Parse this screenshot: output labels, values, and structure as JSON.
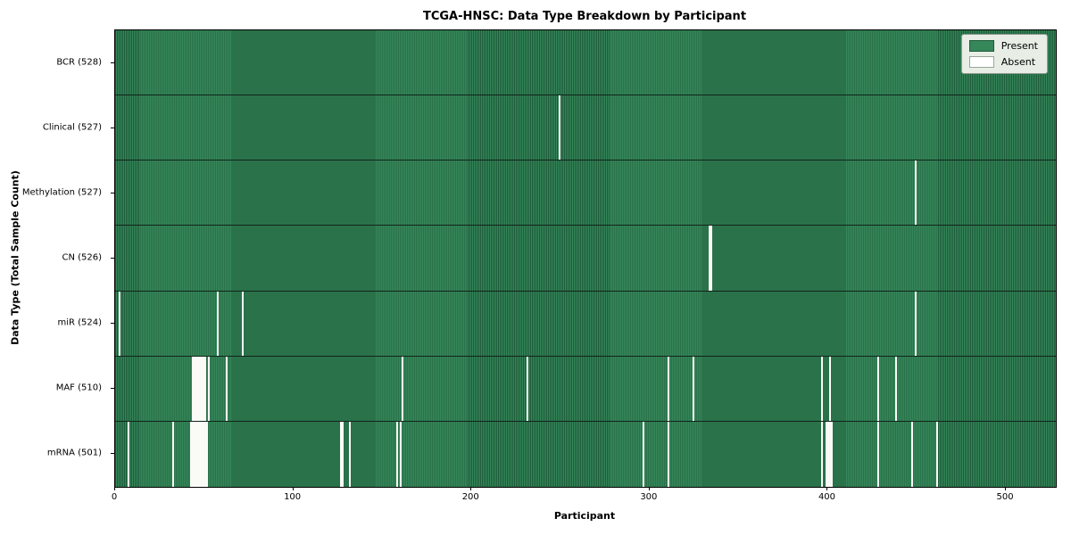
{
  "title": "TCGA-HNSC: Data Type Breakdown by Participant",
  "xlabel": "Participant",
  "ylabel": "Data Type (Total Sample Count)",
  "legend": {
    "present_label": "Present",
    "absent_label": "Absent"
  },
  "colors": {
    "present": "#36875a",
    "present_edge": "#1d5c3a",
    "absent": "#fafaf7",
    "row_separator": "#10241a",
    "legend_bg": "#e8ede6",
    "legend_swatch_border": "#1d5c3a",
    "absent_swatch_border": "#9aa59a"
  },
  "chart_data": {
    "type": "heatmap",
    "orientation": "rows-by-participant",
    "x_range": [
      0,
      528
    ],
    "n_participants": 528,
    "x_ticks": [
      0,
      100,
      200,
      300,
      400,
      500
    ],
    "legend_position": "upper right",
    "rows": [
      {
        "label": "BCR (528)",
        "name": "BCR",
        "total": 528,
        "absent_participants": []
      },
      {
        "label": "Clinical (527)",
        "name": "Clinical",
        "total": 527,
        "absent_participants": [
          249
        ]
      },
      {
        "label": "Methylation (527)",
        "name": "Methylation",
        "total": 527,
        "absent_participants": [
          449
        ]
      },
      {
        "label": "CN (526)",
        "name": "CN",
        "total": 526,
        "absent_participants": [
          333,
          334
        ]
      },
      {
        "label": "miR (524)",
        "name": "miR",
        "total": 524,
        "absent_participants": [
          2,
          57,
          71,
          449
        ]
      },
      {
        "label": "MAF (510)",
        "name": "MAF",
        "total": 510,
        "absent_participants": [
          43,
          44,
          45,
          46,
          47,
          48,
          49,
          50,
          52,
          62,
          161,
          231,
          310,
          324,
          396,
          401,
          428,
          438
        ]
      },
      {
        "label": "mRNA (501)",
        "name": "mRNA",
        "total": 501,
        "absent_participants": [
          7,
          32,
          42,
          43,
          44,
          45,
          46,
          47,
          48,
          49,
          50,
          51,
          126,
          127,
          131,
          158,
          160,
          296,
          310,
          396,
          399,
          400,
          401,
          402,
          428,
          447,
          461
        ]
      }
    ]
  }
}
